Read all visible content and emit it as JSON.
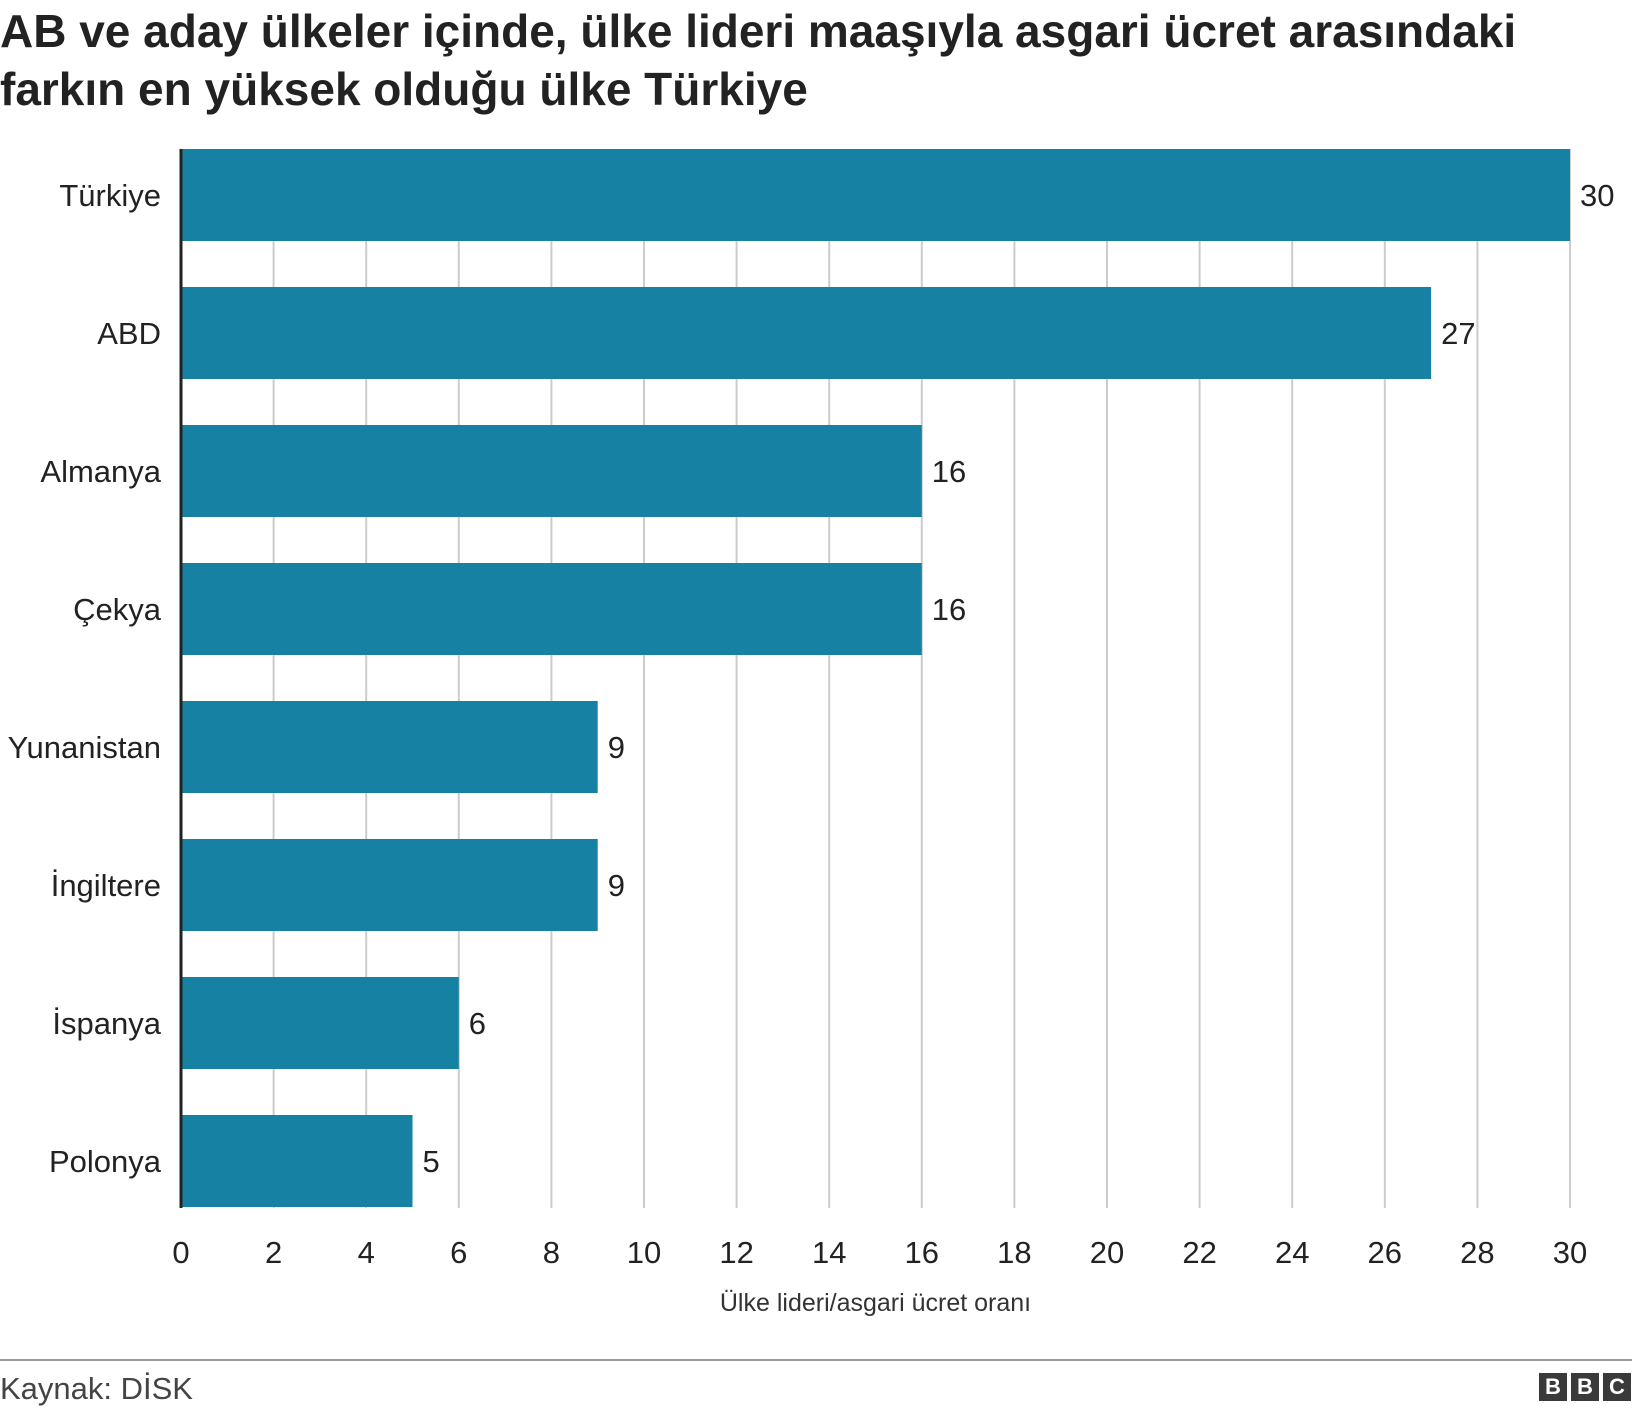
{
  "title": "AB ve aday ülkeler içinde, ülke lideri maaşıyla asgari ücret arasındaki farkın en yüksek olduğu ülke Türkiye",
  "source": "Kaynak: DİSK",
  "logo": [
    "B",
    "B",
    "C"
  ],
  "colors": {
    "bar": "#1681a3",
    "grid": "#cccccc",
    "axis": "#222222",
    "text": "#222222"
  },
  "chart_data": {
    "type": "bar",
    "orientation": "horizontal",
    "categories": [
      "Türkiye",
      "ABD",
      "Almanya",
      "Çekya",
      "Yunanistan",
      "İngiltere",
      "İspanya",
      "Polonya"
    ],
    "values": [
      30,
      27,
      16,
      16,
      9,
      9,
      6,
      5
    ],
    "data_labels": [
      "30",
      "27",
      "16",
      "16",
      "9",
      "9",
      "6",
      "5"
    ],
    "title": "AB ve aday ülkeler içinde, ülke lideri maaşıyla asgari ücret arasındaki farkın en yüksek olduğu ülke Türkiye",
    "xlabel": "Ülke lideri/asgari ücret oranı",
    "ylabel": "",
    "xlim": [
      0,
      30
    ],
    "xticks": [
      0,
      2,
      4,
      6,
      8,
      10,
      12,
      14,
      16,
      18,
      20,
      22,
      24,
      26,
      28,
      30
    ],
    "grid": true,
    "legend": "none"
  }
}
